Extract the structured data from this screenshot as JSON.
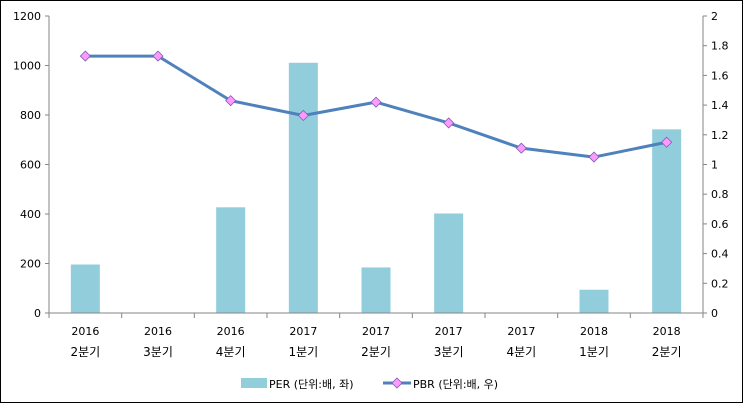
{
  "chart_data": {
    "type": "bar+line",
    "title": "",
    "categories": [
      [
        "2016",
        "2분기"
      ],
      [
        "2016",
        "3분기"
      ],
      [
        "2016",
        "4분기"
      ],
      [
        "2017",
        "1분기"
      ],
      [
        "2017",
        "2분기"
      ],
      [
        "2017",
        "3분기"
      ],
      [
        "2017",
        "4분기"
      ],
      [
        "2018",
        "1분기"
      ],
      [
        "2018",
        "2분기"
      ]
    ],
    "series": [
      {
        "name": "PER (단위:배, 좌)",
        "type": "bar",
        "axis": "left",
        "color": "#92CDDC",
        "values": [
          196,
          null,
          427,
          1011,
          184,
          402,
          null,
          94,
          742
        ]
      },
      {
        "name": "PBR (단위:배, 우)",
        "type": "line",
        "axis": "right",
        "color": "#4F81BD",
        "marker_color": "#FF99FF",
        "values": [
          1.73,
          1.73,
          1.43,
          1.33,
          1.42,
          1.28,
          1.11,
          1.05,
          1.15
        ]
      }
    ],
    "left_axis": {
      "min": 0,
      "max": 1200,
      "ticks": [
        "0",
        "200",
        "400",
        "600",
        "800",
        "1000",
        "1200"
      ]
    },
    "right_axis": {
      "min": 0,
      "max": 2,
      "ticks": [
        "0",
        "0.2",
        "0.4",
        "0.6",
        "0.8",
        "1",
        "1.2",
        "1.4",
        "1.6",
        "1.8",
        "2"
      ]
    },
    "grid": false,
    "legend": "bottom"
  }
}
